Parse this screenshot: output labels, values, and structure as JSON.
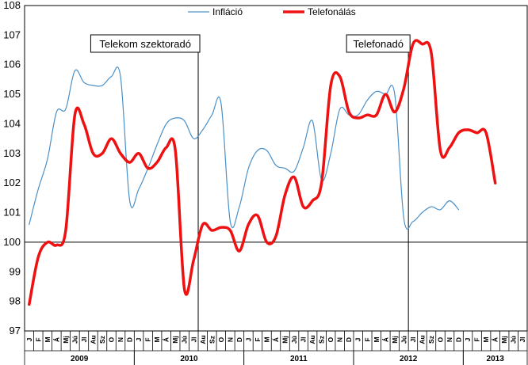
{
  "chart_data": {
    "type": "line",
    "ylim": [
      97,
      108
    ],
    "yticks": [
      97,
      98,
      99,
      100,
      101,
      102,
      103,
      104,
      105,
      106,
      107,
      108
    ],
    "month_labels": [
      "J",
      "F",
      "M",
      "Á",
      "Mj",
      "Jú",
      "Jl",
      "Au",
      "Sz",
      "O",
      "N",
      "D",
      "J",
      "F",
      "M",
      "Á",
      "Mj",
      "Jú",
      "Jl",
      "Au",
      "Sz",
      "O",
      "N",
      "D",
      "J",
      "F",
      "M",
      "Á",
      "Mj",
      "Jú",
      "Jl",
      "Au",
      "Sz",
      "O",
      "N",
      "D",
      "J",
      "F",
      "M",
      "Á",
      "Mj",
      "Jú",
      "Jl",
      "Au",
      "Sz",
      "O",
      "N",
      "D",
      "J",
      "F",
      "M",
      "Á",
      "Mj",
      "Jú",
      "Jl"
    ],
    "years": [
      {
        "label": "2009",
        "start": 0,
        "end": 12
      },
      {
        "label": "2010",
        "start": 12,
        "end": 24
      },
      {
        "label": "2011",
        "start": 24,
        "end": 36
      },
      {
        "label": "2012",
        "start": 36,
        "end": 48
      },
      {
        "label": "2013",
        "start": 48,
        "end": 55
      }
    ],
    "series": [
      {
        "name": "Infláció",
        "color": "#4a90c8",
        "values": [
          100.6,
          101.8,
          102.8,
          104.4,
          104.5,
          105.8,
          105.4,
          105.3,
          105.3,
          105.6,
          105.6,
          101.4,
          101.8,
          102.5,
          103.3,
          104.0,
          104.2,
          104.1,
          103.5,
          103.8,
          104.3,
          104.7,
          100.7,
          101.2,
          102.5,
          103.1,
          103.1,
          102.6,
          102.5,
          102.4,
          103.2,
          104.1,
          102.1,
          103.0,
          104.5,
          104.3,
          104.3,
          104.8,
          105.1,
          105.0,
          105.0,
          100.8,
          100.7,
          101.0,
          101.2,
          101.1,
          101.4,
          101.1,
          null,
          null,
          null,
          null,
          null,
          null,
          null
        ]
      },
      {
        "name": "Telefonálás",
        "color": "#ee1111",
        "values": [
          97.9,
          99.5,
          100.0,
          99.9,
          100.4,
          104.3,
          104.0,
          103.0,
          103.0,
          103.5,
          103.0,
          102.7,
          103.0,
          102.5,
          102.7,
          103.2,
          103.1,
          98.4,
          99.4,
          100.6,
          100.4,
          100.5,
          100.4,
          99.7,
          100.6,
          100.9,
          100.0,
          100.2,
          101.6,
          102.2,
          101.2,
          101.4,
          102.0,
          105.3,
          105.6,
          104.4,
          104.2,
          104.3,
          104.3,
          105.0,
          104.4,
          105.2,
          106.7,
          106.7,
          106.4,
          103.1,
          103.2,
          103.7,
          103.8,
          103.7,
          103.7,
          102.0,
          null,
          null,
          null
        ]
      }
    ],
    "annotations": [
      {
        "label": "Telekom szektoradó",
        "x_index": 18.5
      },
      {
        "label": "Telefonadó",
        "x_index": 41.5
      }
    ],
    "reference_line_y": 100
  }
}
